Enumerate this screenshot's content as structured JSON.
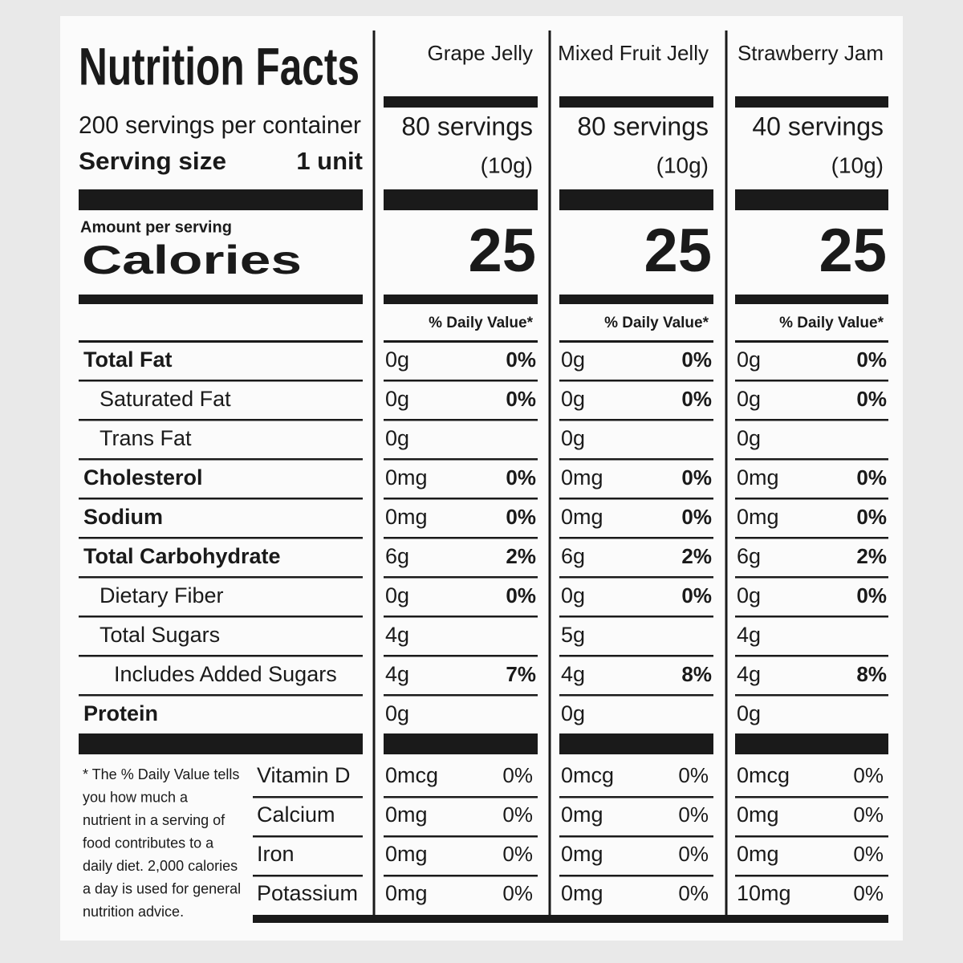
{
  "header": {
    "title": "Nutrition Facts",
    "servings_per_container": "200 servings per container",
    "serving_size_label": "Serving size",
    "serving_size": "1 unit",
    "amount_per_serving": "Amount per serving",
    "calories_label": "Calories"
  },
  "products": [
    {
      "name": "Grape Jelly",
      "servings": "80 servings",
      "serving_size": "(10g)",
      "calories": "25",
      "daily_value_label": "% Daily Value*"
    },
    {
      "name": "Mixed Fruit Jelly",
      "servings": "80 servings",
      "serving_size": "(10g)",
      "calories": "25",
      "daily_value_label": "% Daily Value*"
    },
    {
      "name": "Strawberry Jam",
      "servings": "40 servings",
      "serving_size": "(10g)",
      "calories": "25",
      "daily_value_label": "% Daily Value*"
    }
  ],
  "nutrients": [
    {
      "label": "Total Fat",
      "values": [
        [
          "0g",
          "0%"
        ],
        [
          "0g",
          "0%"
        ],
        [
          "0g",
          "0%"
        ]
      ]
    },
    {
      "label": "Saturated Fat",
      "values": [
        [
          "0g",
          "0%"
        ],
        [
          "0g",
          "0%"
        ],
        [
          "0g",
          "0%"
        ]
      ]
    },
    {
      "label": "Trans Fat",
      "values": [
        [
          "0g"
        ],
        [
          "0g"
        ],
        [
          "0g"
        ]
      ]
    },
    {
      "label": "Cholesterol",
      "values": [
        [
          "0mg",
          "0%"
        ],
        [
          "0mg",
          "0%"
        ],
        [
          "0mg",
          "0%"
        ]
      ]
    },
    {
      "label": "Sodium",
      "values": [
        [
          "0mg",
          "0%"
        ],
        [
          "0mg",
          "0%"
        ],
        [
          "0mg",
          "0%"
        ]
      ]
    },
    {
      "label": "Total Carbohydrate",
      "values": [
        [
          "6g",
          "2%"
        ],
        [
          "6g",
          "2%"
        ],
        [
          "6g",
          "2%"
        ]
      ]
    },
    {
      "label": "Dietary Fiber",
      "values": [
        [
          "0g",
          "0%"
        ],
        [
          "0g",
          "0%"
        ],
        [
          "0g",
          "0%"
        ]
      ]
    },
    {
      "label": "Total Sugars",
      "values": [
        [
          "4g"
        ],
        [
          "5g"
        ],
        [
          "4g"
        ]
      ]
    },
    {
      "label": "Includes Added Sugars",
      "values": [
        [
          "4g",
          "7%"
        ],
        [
          "4g",
          "8%"
        ],
        [
          "4g",
          "8%"
        ]
      ]
    },
    {
      "label": "Protein",
      "values": [
        [
          "0g"
        ],
        [
          "0g"
        ],
        [
          "0g"
        ]
      ]
    }
  ],
  "vitamins": [
    {
      "label": "Vitamin D",
      "values": [
        [
          "0mcg",
          "0%"
        ],
        [
          "0mcg",
          "0%"
        ],
        [
          "0mcg",
          "0%"
        ]
      ]
    },
    {
      "label": "Calcium",
      "values": [
        [
          "0mg",
          "0%"
        ],
        [
          "0mg",
          "0%"
        ],
        [
          "0mg",
          "0%"
        ]
      ]
    },
    {
      "label": "Iron",
      "values": [
        [
          "0mg",
          "0%"
        ],
        [
          "0mg",
          "0%"
        ],
        [
          "0mg",
          "0%"
        ]
      ]
    },
    {
      "label": "Potassium",
      "values": [
        [
          "0mg",
          "0%"
        ],
        [
          "0mg",
          "0%"
        ],
        [
          "10mg",
          "0%"
        ]
      ]
    }
  ],
  "footnote": [
    "* The % Daily Value tells",
    "you how much a",
    "nutrient in a serving of",
    "food contributes to a",
    "daily diet. 2,000 calories",
    "a day is used for general",
    "nutrition advice."
  ]
}
